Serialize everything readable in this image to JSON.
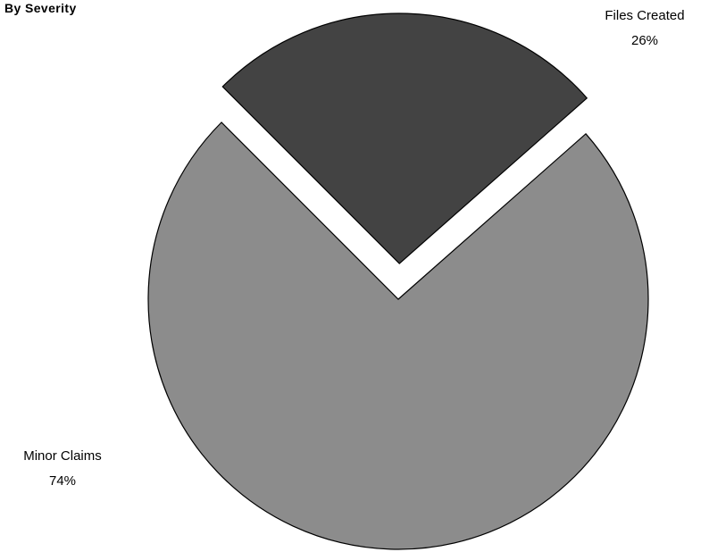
{
  "chart_data": {
    "type": "pie",
    "title": "By Severity",
    "slices": [
      {
        "label": "Files Created",
        "value": 26,
        "percent_label": "26%",
        "color": "#434343",
        "exploded": true
      },
      {
        "label": "Minor Claims",
        "value": 74,
        "percent_label": "74%",
        "color": "#8c8c8c",
        "exploded": false
      }
    ],
    "legend": "none",
    "grid": false
  }
}
